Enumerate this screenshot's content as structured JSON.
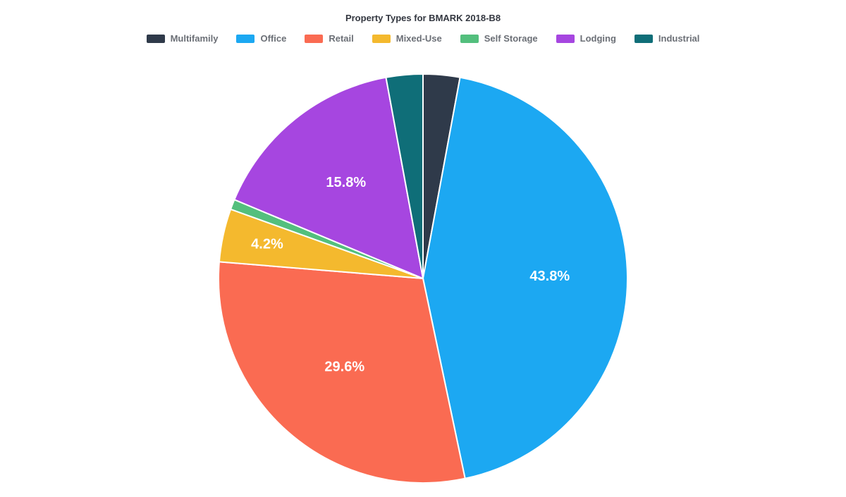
{
  "chart": {
    "type": "pie",
    "title": "Property Types for BMARK 2018-B8",
    "title_fontsize": 13,
    "title_color": "#333740",
    "background_color": "#ffffff",
    "legend_fontsize": 13,
    "legend_color": "#6b6f76",
    "slice_stroke": "#ffffff",
    "slice_stroke_width": 2,
    "label_color": "#ffffff",
    "label_fontsize": 20,
    "pie_radius": 290,
    "slices": [
      {
        "name": "Multifamily",
        "value": 2.9,
        "color": "#2f3a4a",
        "show_label": false
      },
      {
        "name": "Office",
        "value": 43.8,
        "color": "#1ca8f2",
        "show_label": true,
        "label": "43.8%",
        "label_r": 0.62
      },
      {
        "name": "Retail",
        "value": 29.6,
        "color": "#fa6b52",
        "show_label": true,
        "label": "29.6%",
        "label_r": 0.58
      },
      {
        "name": "Mixed-Use",
        "value": 4.2,
        "color": "#f4b92e",
        "show_label": true,
        "label": "4.2%",
        "label_r": 0.78
      },
      {
        "name": "Self Storage",
        "value": 0.8,
        "color": "#53bf7d",
        "show_label": false
      },
      {
        "name": "Lodging",
        "value": 15.8,
        "color": "#a646e0",
        "show_label": true,
        "label": "15.8%",
        "label_r": 0.6
      },
      {
        "name": "Industrial",
        "value": 2.9,
        "color": "#0f6e78",
        "show_label": false
      }
    ]
  }
}
